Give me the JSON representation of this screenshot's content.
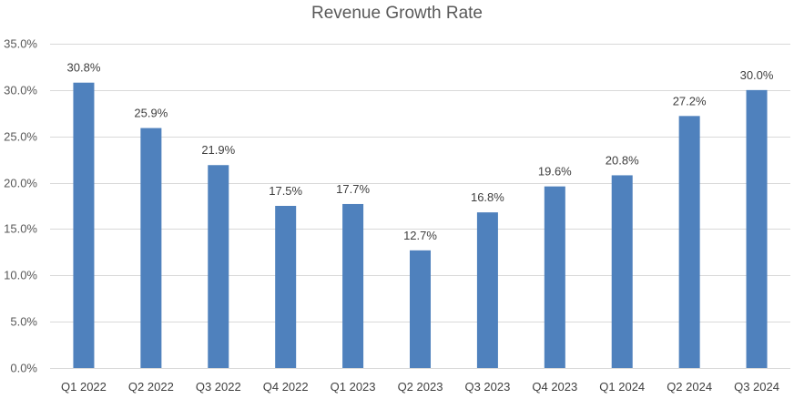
{
  "chart_data": {
    "type": "bar",
    "title": "Revenue Growth Rate",
    "xlabel": "",
    "ylabel": "",
    "categories": [
      "Q1 2022",
      "Q2 2022",
      "Q3 2022",
      "Q4 2022",
      "Q1 2023",
      "Q2 2023",
      "Q3 2023",
      "Q4 2023",
      "Q1 2024",
      "Q2 2024",
      "Q3 2024"
    ],
    "values": [
      30.8,
      25.9,
      21.9,
      17.5,
      17.7,
      12.7,
      16.8,
      19.6,
      20.8,
      27.2,
      30.0
    ],
    "value_labels": [
      "30.8%",
      "25.9%",
      "21.9%",
      "17.5%",
      "17.7%",
      "12.7%",
      "16.8%",
      "19.6%",
      "20.8%",
      "27.2%",
      "30.0%"
    ],
    "ylim": [
      0,
      35
    ],
    "yticks": [
      0,
      5,
      10,
      15,
      20,
      25,
      30,
      35
    ],
    "ytick_labels": [
      "0.0%",
      "5.0%",
      "10.0%",
      "15.0%",
      "20.0%",
      "25.0%",
      "30.0%",
      "35.0%"
    ],
    "grid": true,
    "legend": "none",
    "bar_color": "#4f81bd",
    "grid_color": "#d9d9d9"
  }
}
